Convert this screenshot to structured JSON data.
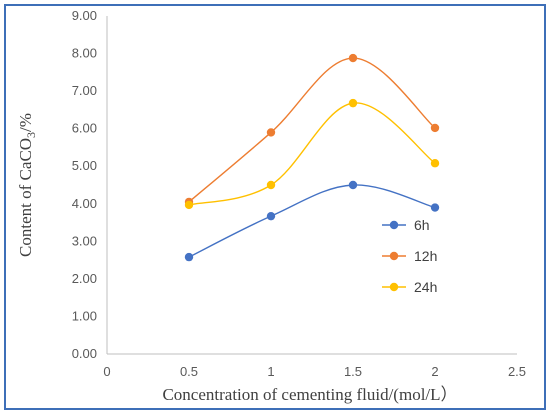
{
  "chart_data": {
    "type": "line",
    "smooth": true,
    "xlabel": "Concentration of cementing fluid/(mol/L）",
    "ylabel": "Content of CaCO",
    "ylabel_sub": "3",
    "ylabel_suffix": "/%",
    "xlim": [
      0,
      2.5
    ],
    "ylim": [
      0,
      9
    ],
    "xticks": [
      "0",
      "0.5",
      "1",
      "1.5",
      "2",
      "2.5"
    ],
    "yticks": [
      "0.00",
      "1.00",
      "2.00",
      "3.00",
      "4.00",
      "5.00",
      "6.00",
      "7.00",
      "8.00",
      "9.00"
    ],
    "grid": false,
    "legend_position": "right",
    "x": [
      0.5,
      1,
      1.5,
      2
    ],
    "series": [
      {
        "name": "6h",
        "color": "#4472c4",
        "values": [
          2.58,
          3.67,
          4.5,
          3.9
        ]
      },
      {
        "name": "12h",
        "color": "#ed7d31",
        "values": [
          4.05,
          5.9,
          7.88,
          6.02
        ]
      },
      {
        "name": "24h",
        "color": "#ffc000",
        "values": [
          3.97,
          4.5,
          6.68,
          5.08
        ]
      }
    ]
  }
}
